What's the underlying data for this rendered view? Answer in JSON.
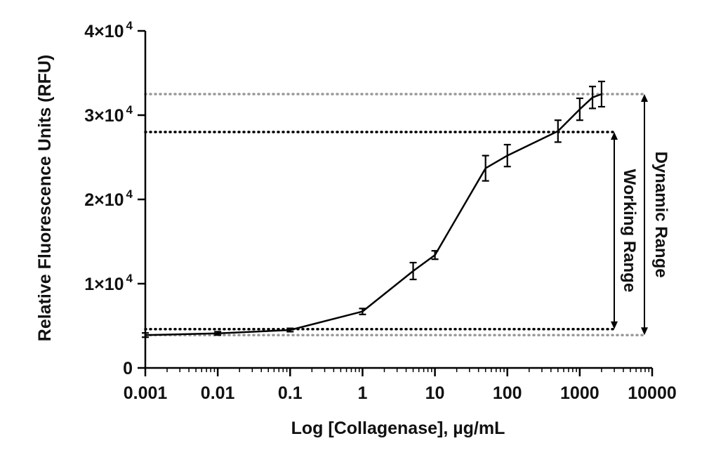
{
  "chart_data": {
    "type": "line",
    "xscale": "log",
    "xlabel": "Log [Collagenase], µg/mL",
    "ylabel": "Relative Fluorescence Units (RFU)",
    "xlim": [
      0.001,
      10000
    ],
    "ylim": [
      0,
      40000
    ],
    "x_ticks": [
      0.001,
      0.01,
      0.1,
      1,
      10,
      100,
      1000,
      10000
    ],
    "x_tick_labels": [
      "0.001",
      "0.01",
      "0.1",
      "1",
      "10",
      "100",
      "1000",
      "10000"
    ],
    "y_ticks": [
      {
        "value": 0,
        "mantissa": "0",
        "exp": ""
      },
      {
        "value": 10000,
        "mantissa": "1×10",
        "exp": "4"
      },
      {
        "value": 20000,
        "mantissa": "2×10",
        "exp": "4"
      },
      {
        "value": 30000,
        "mantissa": "3×10",
        "exp": "4"
      },
      {
        "value": 40000,
        "mantissa": "4×10",
        "exp": "4"
      }
    ],
    "series": [
      {
        "points": [
          {
            "x": 0.001,
            "y": 3900,
            "err": 250
          },
          {
            "x": 0.01,
            "y": 4100,
            "err": 200
          },
          {
            "x": 0.1,
            "y": 4500,
            "err": 200
          },
          {
            "x": 1,
            "y": 6700,
            "err": 350
          },
          {
            "x": 5,
            "y": 11500,
            "err": 1000
          },
          {
            "x": 10,
            "y": 13400,
            "err": 500
          },
          {
            "x": 50,
            "y": 23700,
            "err": 1500
          },
          {
            "x": 100,
            "y": 25200,
            "err": 1300
          },
          {
            "x": 500,
            "y": 28100,
            "err": 1300
          },
          {
            "x": 1000,
            "y": 30700,
            "err": 1300
          },
          {
            "x": 1500,
            "y": 32100,
            "err": 1300
          },
          {
            "x": 2000,
            "y": 32500,
            "err": 1500
          }
        ]
      }
    ],
    "reference_lines": [
      {
        "y": 32500,
        "style": "dotted",
        "color": "#999999"
      },
      {
        "y": 3900,
        "style": "dotted",
        "color": "#999999"
      },
      {
        "y": 28000,
        "style": "dotted",
        "color": "#000000"
      },
      {
        "y": 4600,
        "style": "dotted",
        "color": "#000000"
      }
    ],
    "ranges": [
      {
        "label": "Working Range",
        "from": 4600,
        "to": 28000
      },
      {
        "label": "Dynamic Range",
        "from": 3900,
        "to": 32500
      }
    ],
    "grid": false,
    "legend": "none"
  }
}
